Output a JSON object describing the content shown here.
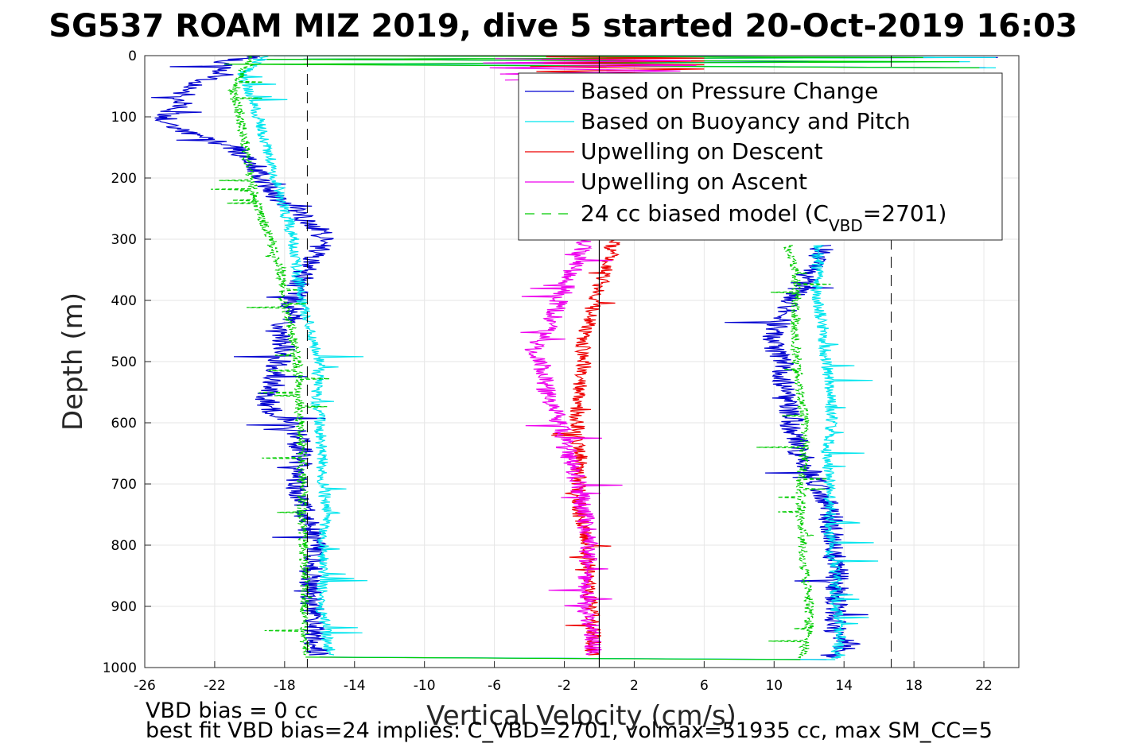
{
  "chart_data": {
    "type": "line",
    "title": "SG537 ROAM MIZ 2019, dive 5 started 20-Oct-2019 16:03",
    "xlabel": "Vertical Velocity (cm/s)",
    "ylabel": "Depth (m)",
    "xlim": [
      -26,
      24
    ],
    "ylim": [
      0,
      1000
    ],
    "y_reversed": true,
    "grid": true,
    "x_ticks": [
      -26,
      -22,
      -18,
      -14,
      -10,
      -6,
      -2,
      2,
      6,
      10,
      14,
      18,
      22
    ],
    "y_ticks": [
      0,
      100,
      200,
      300,
      400,
      500,
      600,
      700,
      800,
      900,
      1000
    ],
    "reference_lines": {
      "solid_x": [
        0
      ],
      "dashed_x": [
        -16.7,
        16.7
      ],
      "dashed_color": "#000000"
    },
    "legend": {
      "location": "top-right",
      "entries": [
        {
          "label": "Based on Pressure Change",
          "color": "#0000d0",
          "style": "solid"
        },
        {
          "label": "Based on Buoyancy and Pitch",
          "color": "#00e5ee",
          "style": "solid"
        },
        {
          "label": "Upwelling on Descent",
          "color": "#ee0000",
          "style": "solid"
        },
        {
          "label": "Upwelling on Ascent",
          "color": "#ee00ee",
          "style": "solid"
        },
        {
          "label_main": "24 cc biased model (C",
          "label_sub": "VBD",
          "label_end": "=2701)",
          "color": "#00cc00",
          "style": "dashed"
        }
      ]
    },
    "series": [
      {
        "name": "Based on Pressure Change",
        "color": "#0000d0",
        "noise": 0.7,
        "descent": {
          "depth": [
            0,
            10,
            30,
            50,
            80,
            100,
            120,
            150,
            180,
            200,
            230,
            250,
            270,
            290,
            300,
            330,
            360,
            400,
            430,
            450,
            480,
            500,
            530,
            560,
            580,
            600,
            650,
            700,
            750,
            800,
            850,
            900,
            930,
            950,
            970,
            980
          ],
          "value": [
            -19.5,
            -21.5,
            -21.5,
            -23.5,
            -24,
            -25,
            -24,
            -21,
            -19.5,
            -19.5,
            -18.5,
            -17.5,
            -16.8,
            -15.8,
            -15.8,
            -16.3,
            -17,
            -17.5,
            -17.5,
            -18.5,
            -18,
            -18.3,
            -18.5,
            -19,
            -18.8,
            -17.5,
            -17,
            -17.3,
            -16.8,
            -16.3,
            -16.5,
            -16.5,
            -16.2,
            -16.3,
            -16.2,
            -16
          ]
        },
        "ascent": {
          "depth": [
            985,
            960,
            950,
            930,
            900,
            850,
            800,
            750,
            700,
            650,
            600,
            580,
            550,
            500,
            480,
            450,
            400,
            380,
            350,
            330,
            310
          ],
          "value": [
            13,
            14.5,
            13.5,
            13.5,
            13.6,
            13.6,
            13.3,
            13.3,
            12.5,
            11.5,
            11,
            10.8,
            10.5,
            10.5,
            10,
            10,
            11,
            11.5,
            12,
            12.5,
            12.8
          ]
        }
      },
      {
        "name": "Based on Buoyancy and Pitch",
        "color": "#00e5ee",
        "noise": 0.35,
        "descent": {
          "depth": [
            0,
            10,
            30,
            60,
            100,
            150,
            200,
            250,
            300,
            350,
            400,
            450,
            500,
            550,
            600,
            650,
            700,
            750,
            800,
            850,
            900,
            950,
            980
          ],
          "value": [
            -19,
            -19.5,
            -20.5,
            -20,
            -19.5,
            -19,
            -18.5,
            -18,
            -17.5,
            -17.3,
            -17,
            -16.5,
            -16,
            -16.2,
            -16,
            -15.9,
            -15.8,
            -15.6,
            -15.8,
            -15.8,
            -15.9,
            -15.6,
            -15.4
          ]
        },
        "ascent": {
          "depth": [
            985,
            950,
            900,
            850,
            800,
            750,
            700,
            650,
            600,
            550,
            500,
            450,
            400,
            350,
            310
          ],
          "value": [
            13.5,
            13.8,
            13.5,
            13.5,
            13.2,
            13.2,
            13.2,
            13,
            13.3,
            13.2,
            13,
            12.8,
            12.5,
            12.5,
            12.5
          ]
        }
      },
      {
        "name": "Upwelling on Descent",
        "color": "#ee0000",
        "noise": 0.45,
        "descent": {
          "depth": [
            300,
            330,
            360,
            400,
            430,
            470,
            500,
            550,
            600,
            650,
            700,
            750,
            800,
            850,
            900,
            950,
            980
          ],
          "value": [
            0.8,
            0.6,
            0.3,
            -0.3,
            -0.5,
            -1,
            -0.8,
            -1.2,
            -1.3,
            -1.1,
            -1.2,
            -1.1,
            -0.7,
            -0.6,
            -0.5,
            -0.3,
            -0.4
          ]
        }
      },
      {
        "name": "Upwelling on Ascent",
        "color": "#ee00ee",
        "noise": 0.55,
        "ascent": {
          "depth": [
            980,
            950,
            900,
            850,
            800,
            750,
            700,
            650,
            600,
            550,
            500,
            480,
            450,
            420,
            400,
            370,
            330,
            300
          ],
          "value": [
            -0.3,
            -0.3,
            -0.8,
            -0.7,
            -0.6,
            -0.8,
            -1.2,
            -1.8,
            -2.3,
            -3,
            -3.3,
            -3.8,
            -3,
            -2.5,
            -2.3,
            -1.8,
            -1.2,
            -0.9
          ]
        }
      },
      {
        "name": "24 cc biased model",
        "color": "#00cc00",
        "style": "dashed",
        "noise": 0.3,
        "descent": {
          "depth": [
            0,
            10,
            30,
            60,
            100,
            150,
            200,
            250,
            300,
            350,
            400,
            450,
            500,
            550,
            600,
            650,
            700,
            750,
            800,
            850,
            900,
            950,
            980
          ],
          "value": [
            -20,
            -20,
            -20.5,
            -21,
            -20.5,
            -20.2,
            -20,
            -19.5,
            -18.8,
            -18.2,
            -18,
            -17.6,
            -17.3,
            -17.2,
            -17.1,
            -17,
            -17,
            -17,
            -16.9,
            -16.8,
            -16.9,
            -16.9,
            -16.8
          ]
        },
        "ascent": {
          "depth": [
            985,
            950,
            900,
            850,
            800,
            750,
            700,
            650,
            600,
            550,
            500,
            450,
            400,
            350,
            310
          ],
          "value": [
            11.5,
            12,
            12,
            11.8,
            11.7,
            11.5,
            11.5,
            11.7,
            11.8,
            11.5,
            11.3,
            11.2,
            11.3,
            11.2,
            10.8
          ]
        }
      }
    ],
    "surface_spikes": {
      "note": "Transition spikes near 0 m and 985 m",
      "top_depth": [
        0,
        3,
        6,
        10,
        14,
        20
      ],
      "bottom_depth": [
        983,
        985,
        987,
        989
      ]
    }
  },
  "notes": {
    "line1": "VBD bias = 0 cc",
    "line2": "best fit VBD bias=24 implies: C_VBD=2701, volmax=51935 cc, max SM_CC=5"
  }
}
